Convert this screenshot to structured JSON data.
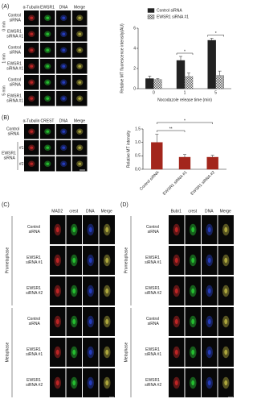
{
  "panels": {
    "a": {
      "letter": "(A)",
      "columns": [
        "α-Tubulin",
        "EWSR1",
        "DNA",
        "Merge"
      ],
      "times": [
        "0 min",
        "1 min",
        "5 min"
      ],
      "rows": [
        "Control siRNA",
        "EWSR1 siRNA #1",
        "Control siRNA",
        "EWSR1 siRNA #1",
        "Control siRNA",
        "EWSR1 siRNA #1"
      ]
    },
    "b": {
      "letter": "(B)",
      "columns": [
        "α-Tubulin",
        "CREST",
        "DNA",
        "Merge"
      ],
      "rows": [
        "Control siRNA",
        "EWSR1 siRNA"
      ],
      "sub_rows": [
        "#1",
        "#2"
      ]
    },
    "c": {
      "letter": "(C)",
      "columns": [
        "MAD2",
        "crest",
        "DNA",
        "Merge"
      ],
      "phases": [
        "Prometaphase",
        "Metaphase"
      ],
      "rows": [
        "Control siRNA",
        "EWSR1 siRNA #1",
        "EWSR1 siRNA #2",
        "Control siRNA",
        "EWSR1 siRNA #1",
        "EWSR1 siRNA #2"
      ]
    },
    "d": {
      "letter": "(D)",
      "columns": [
        "Bubr1",
        "crest",
        "DNA",
        "Merge"
      ],
      "phases": [
        "Prometaphase",
        "Metaphase"
      ],
      "rows": [
        "Control siRNA",
        "EWSR1 siRNA #1",
        "EWSR1 siRNA #2",
        "Control siRNA",
        "EWSR1 siRNA #1",
        "EWSR1 siRNA #2"
      ]
    }
  },
  "chart_data": [
    {
      "type": "bar",
      "y_label": "Relative MT fluorescence intensity(AU)",
      "x_label": "Nocodazole release time (min)",
      "categories": [
        "0",
        "1",
        "5"
      ],
      "series": [
        {
          "name": "Control siRNA",
          "color": "#222222",
          "values": [
            1.0,
            2.8,
            4.8
          ],
          "errors": [
            0.25,
            0.4,
            0.2
          ]
        },
        {
          "name": "EWSR1 siRNA #1",
          "color": "#555555",
          "hatch": "checkered",
          "values": [
            0.9,
            1.2,
            1.3
          ],
          "errors": [
            0.1,
            0.35,
            0.45
          ]
        }
      ],
      "ylim": [
        0,
        6
      ],
      "yticks": [
        0,
        2,
        4,
        6
      ],
      "legend": "top",
      "annotations": [
        {
          "text": "*",
          "category": "1"
        },
        {
          "text": "*",
          "category": "5"
        }
      ]
    },
    {
      "type": "bar",
      "y_label": "Relative MT intensity",
      "categories": [
        "Control siRNA",
        "EWSR1 siRNA #1",
        "EWSR1 siRNA #2"
      ],
      "series": [
        {
          "color": "#a3261c",
          "values": [
            1.0,
            0.45,
            0.45
          ],
          "errors": [
            0.3,
            0.1,
            0.07
          ]
        }
      ],
      "ylim": [
        0,
        1.5
      ],
      "yticks": [
        {
          "value": 0,
          "label": "0.0"
        },
        0.5,
        {
          "value": 1,
          "label": "1.0"
        },
        1.5
      ],
      "annotations": [
        {
          "text": "**",
          "from": "Control siRNA",
          "to": "EWSR1 siRNA #1"
        },
        {
          "text": "*",
          "from": "Control siRNA",
          "to": "EWSR1 siRNA #2"
        }
      ]
    }
  ]
}
